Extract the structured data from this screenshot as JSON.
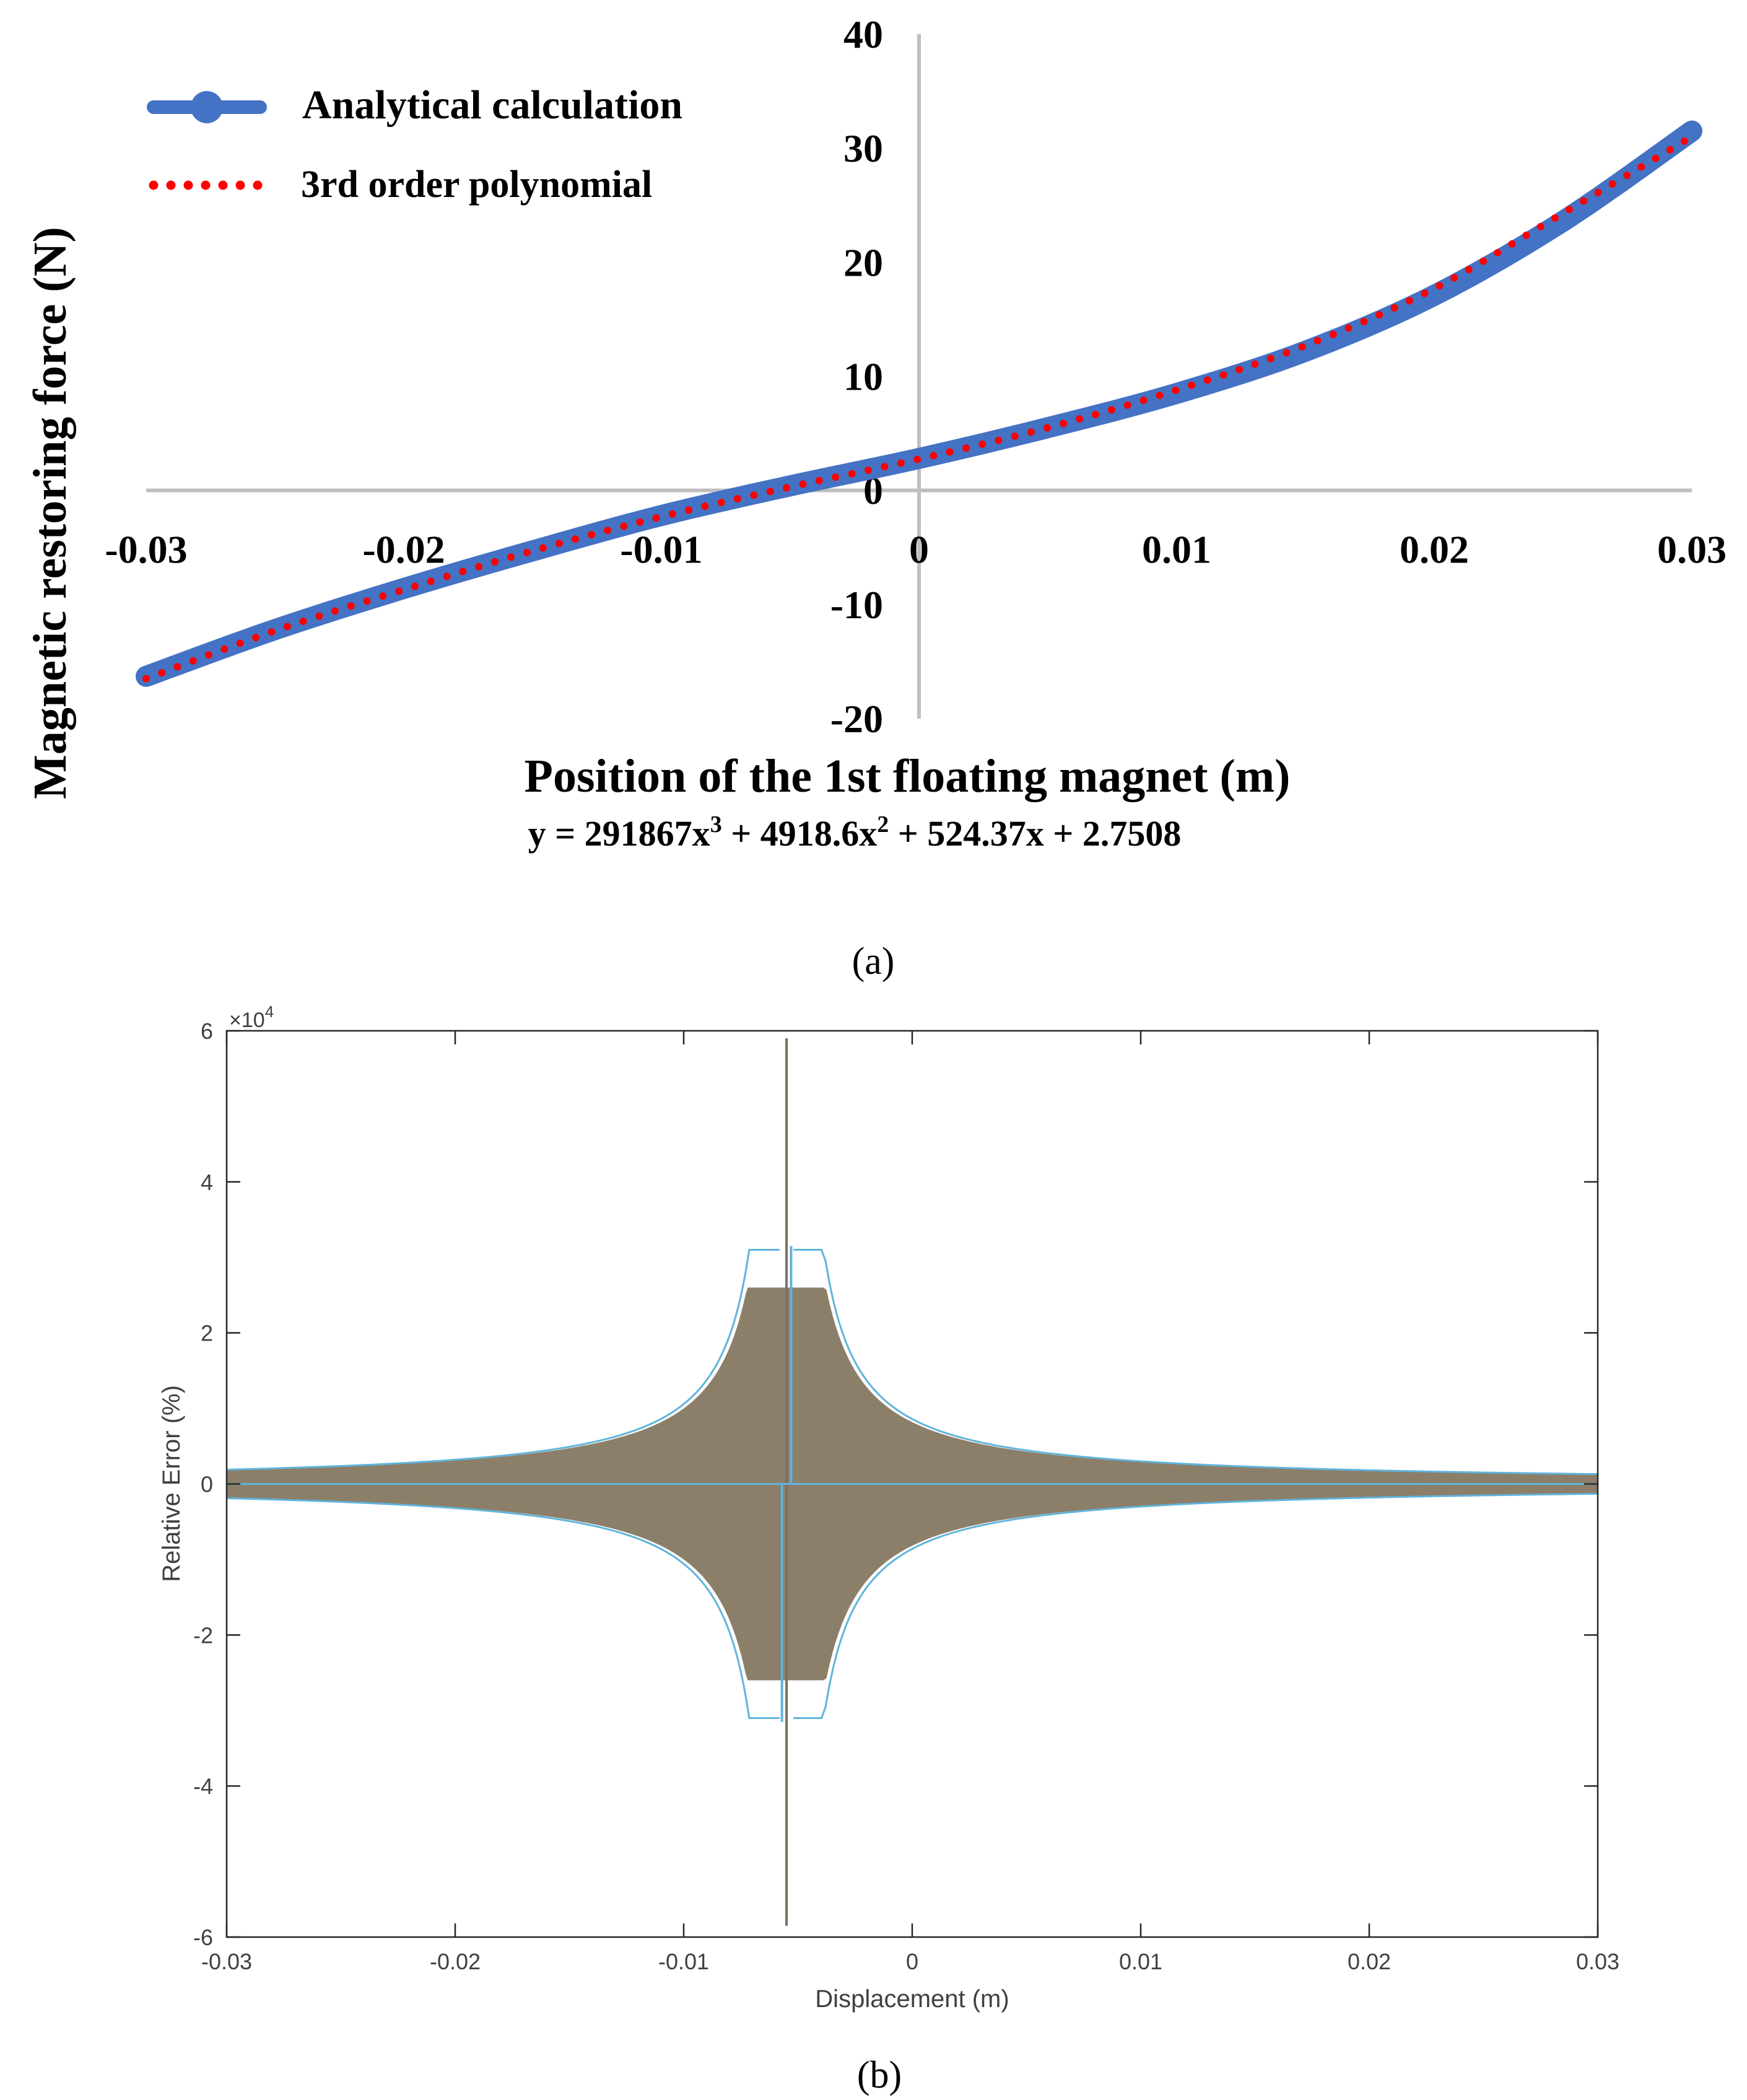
{
  "panel_a": {
    "caption": "(a)",
    "legend": {
      "analytical": "Analytical calculation",
      "polynomial": "3rd order polynomial"
    },
    "equation": {
      "p1": "y = 291867x",
      "s1": "3",
      "p2": " + 4918.6x",
      "s2": "2",
      "p3": " + 524.37x + 2.7508"
    }
  },
  "panel_b": {
    "caption": "(b)",
    "exponent_base": "×10",
    "exponent_power": "4"
  },
  "colors": {
    "analytical": "#4472c4",
    "polynomial": "#ff0000",
    "axis_a": "#bfbfbf",
    "box_b": "#262626",
    "error_fill": "#8c7f6a",
    "error_envelope": "#5fb4dc"
  },
  "chart_data": [
    {
      "type": "line",
      "title": "",
      "xlabel": "Position of the 1st floating magnet (m)",
      "ylabel": "Magnetic restoring force (N)",
      "xlim": [
        -0.03,
        0.03
      ],
      "ylim": [
        -20,
        40
      ],
      "xticks": [
        -0.03,
        -0.02,
        -0.01,
        0,
        0.01,
        0.02,
        0.03
      ],
      "xtick_labels": [
        "-0.03",
        "-0.02",
        "-0.01",
        "0",
        "0.01",
        "0.02",
        "0.03"
      ],
      "yticks": [
        40,
        30,
        20,
        10,
        0,
        -10,
        -20
      ],
      "ytick_labels": [
        "40",
        "30",
        "20",
        "10",
        "0",
        "-10",
        "-20"
      ],
      "legend_position": "top-left",
      "series": [
        {
          "name": "Analytical calculation",
          "style": "thick line with markers",
          "x": [
            -0.03,
            -0.025,
            -0.02,
            -0.015,
            -0.01,
            -0.005,
            0,
            0.005,
            0.01,
            0.015,
            0.02,
            0.025,
            0.03
          ],
          "y": [
            -16.3,
            -12.2,
            -8.6,
            -5.3,
            -2.2,
            0.4,
            2.8,
            5.5,
            8.5,
            12.2,
            17.1,
            23.6,
            31.5
          ]
        },
        {
          "name": "3rd order polynomial",
          "style": "dotted",
          "coefficients": [
            291867,
            4918.6,
            524.37,
            2.7508
          ],
          "x": [
            -0.03,
            -0.025,
            -0.02,
            -0.015,
            -0.01,
            -0.005,
            0,
            0.005,
            0.01,
            0.015,
            0.02,
            0.025,
            0.03
          ],
          "y": [
            -16.5,
            -12.3,
            -8.7,
            -5.3,
            -2.3,
            0.3,
            2.75,
            5.5,
            8.8,
            12.7,
            17.7,
            24.3,
            31.0
          ]
        }
      ]
    },
    {
      "type": "line",
      "title": "",
      "xlabel": "Displacement (m)",
      "ylabel": "Relative Error (%)",
      "xlim": [
        -0.03,
        0.03
      ],
      "ylim": [
        -6,
        6
      ],
      "y_multiplier": 10000,
      "xticks": [
        -0.03,
        -0.02,
        -0.01,
        0,
        0.01,
        0.02,
        0.03
      ],
      "xtick_labels": [
        "-0.03",
        "-0.02",
        "-0.01",
        "0",
        "0.01",
        "0.02",
        "0.03"
      ],
      "yticks": [
        6,
        4,
        2,
        0,
        -2,
        -4,
        -6
      ],
      "ytick_labels": [
        "6",
        "4",
        "2",
        "0",
        "-2",
        "-4",
        "-6"
      ],
      "singularity_x": -0.0055,
      "series": [
        {
          "name": "Relative error spike (upper)",
          "x": [
            -0.0055
          ],
          "y": [
            5.9
          ]
        },
        {
          "name": "Relative error spike (lower)",
          "x": [
            -0.0055
          ],
          "y": [
            -5.85
          ]
        },
        {
          "name": "Envelope peak (upper)",
          "x": [
            -0.0053
          ],
          "y": [
            3.15
          ]
        },
        {
          "name": "Envelope peak (lower)",
          "x": [
            -0.0057
          ],
          "y": [
            -3.15
          ]
        }
      ]
    }
  ]
}
